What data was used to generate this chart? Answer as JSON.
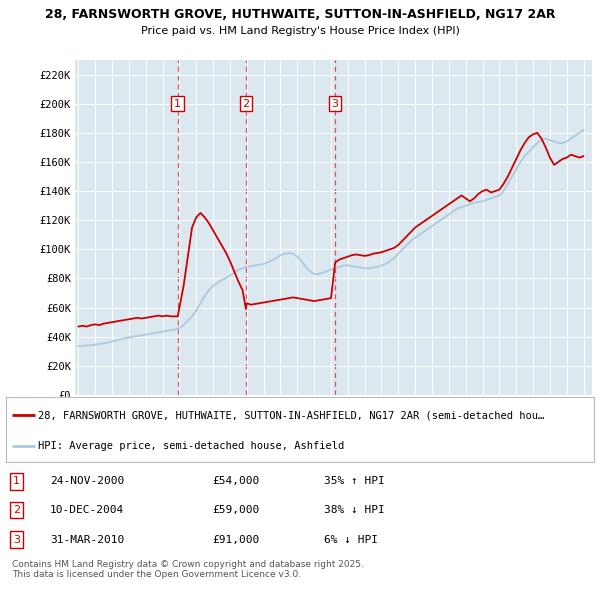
{
  "title1": "28, FARNSWORTH GROVE, HUTHWAITE, SUTTON-IN-ASHFIELD, NG17 2AR",
  "title2": "Price paid vs. HM Land Registry's House Price Index (HPI)",
  "ylabel_ticks": [
    "£0",
    "£20K",
    "£40K",
    "£60K",
    "£80K",
    "£100K",
    "£120K",
    "£140K",
    "£160K",
    "£180K",
    "£200K",
    "£220K"
  ],
  "ytick_vals": [
    0,
    20000,
    40000,
    60000,
    80000,
    100000,
    120000,
    140000,
    160000,
    180000,
    200000,
    220000
  ],
  "ylim": [
    0,
    230000
  ],
  "xlim_start": 1994.8,
  "xlim_end": 2025.5,
  "transactions": [
    {
      "num": 1,
      "date": "24-NOV-2000",
      "price": 54000,
      "pct": "35%",
      "dir": "↑",
      "year_x": 2000.9
    },
    {
      "num": 2,
      "date": "10-DEC-2004",
      "price": 59000,
      "pct": "38%",
      "dir": "↓",
      "year_x": 2004.95
    },
    {
      "num": 3,
      "date": "31-MAR-2010",
      "price": 91000,
      "pct": "6%",
      "dir": "↓",
      "year_x": 2010.25
    }
  ],
  "legend_line1": "28, FARNSWORTH GROVE, HUTHWAITE, SUTTON-IN-ASHFIELD, NG17 2AR (semi-detached hou…",
  "legend_line2": "HPI: Average price, semi-detached house, Ashfield",
  "footer": "Contains HM Land Registry data © Crown copyright and database right 2025.\nThis data is licensed under the Open Government Licence v3.0.",
  "red_color": "#cc0000",
  "blue_color": "#adc8e0",
  "bg_color": "#dce8f0",
  "hpi_data": [
    [
      1995.0,
      33500
    ],
    [
      1995.25,
      33800
    ],
    [
      1995.5,
      34000
    ],
    [
      1995.75,
      34200
    ],
    [
      1996.0,
      34500
    ],
    [
      1996.25,
      35000
    ],
    [
      1996.5,
      35500
    ],
    [
      1996.75,
      36000
    ],
    [
      1997.0,
      36800
    ],
    [
      1997.25,
      37500
    ],
    [
      1997.5,
      38200
    ],
    [
      1997.75,
      39000
    ],
    [
      1998.0,
      39500
    ],
    [
      1998.25,
      40000
    ],
    [
      1998.5,
      40500
    ],
    [
      1998.75,
      41000
    ],
    [
      1999.0,
      41500
    ],
    [
      1999.25,
      42000
    ],
    [
      1999.5,
      42500
    ],
    [
      1999.75,
      43000
    ],
    [
      2000.0,
      43500
    ],
    [
      2000.25,
      44000
    ],
    [
      2000.5,
      44500
    ],
    [
      2000.75,
      45000
    ],
    [
      2001.0,
      46000
    ],
    [
      2001.25,
      48000
    ],
    [
      2001.5,
      51000
    ],
    [
      2001.75,
      54000
    ],
    [
      2002.0,
      58000
    ],
    [
      2002.25,
      63000
    ],
    [
      2002.5,
      68000
    ],
    [
      2002.75,
      72000
    ],
    [
      2003.0,
      75000
    ],
    [
      2003.25,
      77000
    ],
    [
      2003.5,
      79000
    ],
    [
      2003.75,
      80000
    ],
    [
      2004.0,
      82000
    ],
    [
      2004.25,
      84000
    ],
    [
      2004.5,
      86000
    ],
    [
      2004.75,
      87000
    ],
    [
      2005.0,
      88000
    ],
    [
      2005.25,
      88500
    ],
    [
      2005.5,
      89000
    ],
    [
      2005.75,
      89500
    ],
    [
      2006.0,
      90000
    ],
    [
      2006.25,
      91000
    ],
    [
      2006.5,
      92500
    ],
    [
      2006.75,
      94000
    ],
    [
      2007.0,
      96000
    ],
    [
      2007.25,
      97000
    ],
    [
      2007.5,
      97500
    ],
    [
      2007.75,
      97000
    ],
    [
      2008.0,
      95000
    ],
    [
      2008.25,
      92000
    ],
    [
      2008.5,
      88000
    ],
    [
      2008.75,
      85000
    ],
    [
      2009.0,
      83000
    ],
    [
      2009.25,
      83000
    ],
    [
      2009.5,
      84000
    ],
    [
      2009.75,
      85000
    ],
    [
      2010.0,
      86000
    ],
    [
      2010.25,
      87000
    ],
    [
      2010.5,
      88000
    ],
    [
      2010.75,
      89000
    ],
    [
      2011.0,
      89000
    ],
    [
      2011.25,
      88500
    ],
    [
      2011.5,
      88000
    ],
    [
      2011.75,
      87500
    ],
    [
      2012.0,
      87000
    ],
    [
      2012.25,
      87000
    ],
    [
      2012.5,
      87500
    ],
    [
      2012.75,
      88000
    ],
    [
      2013.0,
      89000
    ],
    [
      2013.25,
      90000
    ],
    [
      2013.5,
      92000
    ],
    [
      2013.75,
      94000
    ],
    [
      2014.0,
      97000
    ],
    [
      2014.25,
      100000
    ],
    [
      2014.5,
      103000
    ],
    [
      2014.75,
      106000
    ],
    [
      2015.0,
      108000
    ],
    [
      2015.25,
      110000
    ],
    [
      2015.5,
      112000
    ],
    [
      2015.75,
      114000
    ],
    [
      2016.0,
      116000
    ],
    [
      2016.25,
      118000
    ],
    [
      2016.5,
      120000
    ],
    [
      2016.75,
      122000
    ],
    [
      2017.0,
      124000
    ],
    [
      2017.25,
      126000
    ],
    [
      2017.5,
      128000
    ],
    [
      2017.75,
      129000
    ],
    [
      2018.0,
      130000
    ],
    [
      2018.25,
      131000
    ],
    [
      2018.5,
      132000
    ],
    [
      2018.75,
      132500
    ],
    [
      2019.0,
      133000
    ],
    [
      2019.25,
      134000
    ],
    [
      2019.5,
      135000
    ],
    [
      2019.75,
      136000
    ],
    [
      2020.0,
      137000
    ],
    [
      2020.25,
      140000
    ],
    [
      2020.5,
      145000
    ],
    [
      2020.75,
      150000
    ],
    [
      2021.0,
      155000
    ],
    [
      2021.25,
      160000
    ],
    [
      2021.5,
      164000
    ],
    [
      2021.75,
      167000
    ],
    [
      2022.0,
      170000
    ],
    [
      2022.25,
      173000
    ],
    [
      2022.5,
      175000
    ],
    [
      2022.75,
      176000
    ],
    [
      2023.0,
      175000
    ],
    [
      2023.25,
      174000
    ],
    [
      2023.5,
      173000
    ],
    [
      2023.75,
      173000
    ],
    [
      2024.0,
      174000
    ],
    [
      2024.25,
      176000
    ],
    [
      2024.5,
      178000
    ],
    [
      2024.75,
      180000
    ],
    [
      2025.0,
      182000
    ]
  ],
  "red_data": [
    [
      1995.0,
      47000
    ],
    [
      1995.25,
      47500
    ],
    [
      1995.5,
      47000
    ],
    [
      1995.75,
      48000
    ],
    [
      1996.0,
      48500
    ],
    [
      1996.25,
      48000
    ],
    [
      1996.5,
      49000
    ],
    [
      1996.75,
      49500
    ],
    [
      1997.0,
      50000
    ],
    [
      1997.25,
      50500
    ],
    [
      1997.5,
      51000
    ],
    [
      1997.75,
      51500
    ],
    [
      1998.0,
      52000
    ],
    [
      1998.25,
      52500
    ],
    [
      1998.5,
      53000
    ],
    [
      1998.75,
      52500
    ],
    [
      1999.0,
      53000
    ],
    [
      1999.25,
      53500
    ],
    [
      1999.5,
      54000
    ],
    [
      1999.75,
      54500
    ],
    [
      2000.0,
      54000
    ],
    [
      2000.25,
      54500
    ],
    [
      2000.5,
      54000
    ],
    [
      2000.75,
      54000
    ],
    [
      2000.9,
      54000
    ],
    [
      2001.0,
      60000
    ],
    [
      2001.25,
      75000
    ],
    [
      2001.5,
      95000
    ],
    [
      2001.75,
      115000
    ],
    [
      2002.0,
      122000
    ],
    [
      2002.25,
      125000
    ],
    [
      2002.5,
      122000
    ],
    [
      2002.75,
      118000
    ],
    [
      2003.0,
      113000
    ],
    [
      2003.25,
      108000
    ],
    [
      2003.5,
      103000
    ],
    [
      2003.75,
      98000
    ],
    [
      2004.0,
      92000
    ],
    [
      2004.25,
      85000
    ],
    [
      2004.5,
      78000
    ],
    [
      2004.75,
      72000
    ],
    [
      2004.95,
      59000
    ],
    [
      2005.0,
      63000
    ],
    [
      2005.25,
      62000
    ],
    [
      2005.5,
      62500
    ],
    [
      2005.75,
      63000
    ],
    [
      2006.0,
      63500
    ],
    [
      2006.25,
      64000
    ],
    [
      2006.5,
      64500
    ],
    [
      2006.75,
      65000
    ],
    [
      2007.0,
      65500
    ],
    [
      2007.25,
      66000
    ],
    [
      2007.5,
      66500
    ],
    [
      2007.75,
      67000
    ],
    [
      2008.0,
      66500
    ],
    [
      2008.25,
      66000
    ],
    [
      2008.5,
      65500
    ],
    [
      2008.75,
      65000
    ],
    [
      2009.0,
      64500
    ],
    [
      2009.25,
      65000
    ],
    [
      2009.5,
      65500
    ],
    [
      2009.75,
      66000
    ],
    [
      2010.0,
      66500
    ],
    [
      2010.25,
      91000
    ],
    [
      2010.5,
      93000
    ],
    [
      2010.75,
      94000
    ],
    [
      2011.0,
      95000
    ],
    [
      2011.25,
      96000
    ],
    [
      2011.5,
      96500
    ],
    [
      2011.75,
      96000
    ],
    [
      2012.0,
      95500
    ],
    [
      2012.25,
      96000
    ],
    [
      2012.5,
      97000
    ],
    [
      2012.75,
      97500
    ],
    [
      2013.0,
      98000
    ],
    [
      2013.25,
      99000
    ],
    [
      2013.5,
      100000
    ],
    [
      2013.75,
      101000
    ],
    [
      2014.0,
      103000
    ],
    [
      2014.25,
      106000
    ],
    [
      2014.5,
      109000
    ],
    [
      2014.75,
      112000
    ],
    [
      2015.0,
      115000
    ],
    [
      2015.25,
      117000
    ],
    [
      2015.5,
      119000
    ],
    [
      2015.75,
      121000
    ],
    [
      2016.0,
      123000
    ],
    [
      2016.25,
      125000
    ],
    [
      2016.5,
      127000
    ],
    [
      2016.75,
      129000
    ],
    [
      2017.0,
      131000
    ],
    [
      2017.25,
      133000
    ],
    [
      2017.5,
      135000
    ],
    [
      2017.75,
      137000
    ],
    [
      2018.0,
      135000
    ],
    [
      2018.25,
      133000
    ],
    [
      2018.5,
      135000
    ],
    [
      2018.75,
      138000
    ],
    [
      2019.0,
      140000
    ],
    [
      2019.25,
      141000
    ],
    [
      2019.5,
      139000
    ],
    [
      2019.75,
      140000
    ],
    [
      2020.0,
      141000
    ],
    [
      2020.25,
      145000
    ],
    [
      2020.5,
      150000
    ],
    [
      2020.75,
      156000
    ],
    [
      2021.0,
      162000
    ],
    [
      2021.25,
      168000
    ],
    [
      2021.5,
      173000
    ],
    [
      2021.75,
      177000
    ],
    [
      2022.0,
      179000
    ],
    [
      2022.25,
      180000
    ],
    [
      2022.5,
      176000
    ],
    [
      2022.75,
      170000
    ],
    [
      2023.0,
      163000
    ],
    [
      2023.25,
      158000
    ],
    [
      2023.5,
      160000
    ],
    [
      2023.75,
      162000
    ],
    [
      2024.0,
      163000
    ],
    [
      2024.25,
      165000
    ],
    [
      2024.5,
      164000
    ],
    [
      2024.75,
      163000
    ],
    [
      2025.0,
      164000
    ]
  ]
}
